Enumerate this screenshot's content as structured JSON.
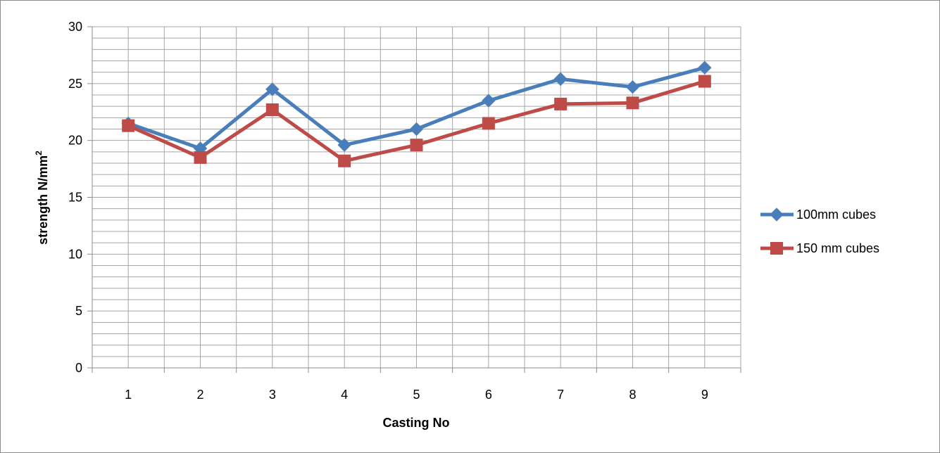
{
  "chart_data": {
    "type": "line",
    "title": "",
    "xlabel": "Casting No",
    "ylabel_main": "strength N/mm",
    "ylabel_sup": "2",
    "categories": [
      "1",
      "2",
      "3",
      "4",
      "5",
      "6",
      "7",
      "8",
      "9"
    ],
    "ylim": [
      0,
      30
    ],
    "y_major_ticks": [
      0,
      5,
      10,
      15,
      20,
      25,
      30
    ],
    "y_tick_labels": [
      "0",
      "5",
      "10",
      "15",
      "20",
      "25",
      "30"
    ],
    "y_minor_step": 1,
    "grid": true,
    "legend_position": "right",
    "series": [
      {
        "name": "100mm cubes",
        "color": "#4a7ebb",
        "marker": "diamond",
        "values": [
          21.5,
          19.3,
          24.5,
          19.6,
          21.0,
          23.5,
          25.4,
          24.7,
          26.4
        ]
      },
      {
        "name": "150 mm cubes",
        "color": "#be4b48",
        "marker": "square",
        "values": [
          21.3,
          18.5,
          22.7,
          18.2,
          19.6,
          21.5,
          23.2,
          23.3,
          25.2
        ]
      }
    ]
  }
}
